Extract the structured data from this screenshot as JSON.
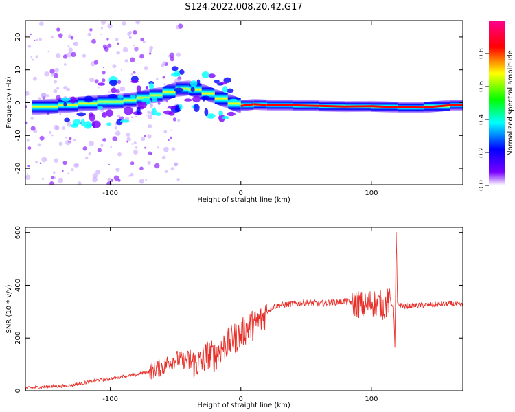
{
  "page": {
    "title": "S124.2022.008.20.42.G17"
  },
  "chart_data": [
    {
      "type": "heatmap",
      "title": "",
      "xlabel": "Height of straight line (km)",
      "ylabel": "Frequency (Hz)",
      "xlim": [
        -165,
        170
      ],
      "ylim": [
        -25,
        25
      ],
      "xticks": [
        -100,
        0,
        100
      ],
      "yticks": [
        -20,
        -10,
        0,
        10,
        20
      ],
      "colorbar": {
        "label": "Normalized spectral amplitude",
        "range": [
          0,
          1
        ],
        "ticks": [
          0.0,
          0.2,
          0.4,
          0.6,
          0.8
        ],
        "colors": [
          "#ffffff",
          "#7a00ff",
          "#0000ff",
          "#00ffff",
          "#00ff00",
          "#ffff00",
          "#ff0000",
          "#ff0090"
        ]
      },
      "ridge": [
        {
          "x": -160,
          "y": -1.5
        },
        {
          "x": -140,
          "y": -1
        },
        {
          "x": -125,
          "y": -0.5
        },
        {
          "x": -110,
          "y": 0
        },
        {
          "x": -90,
          "y": 0.5
        },
        {
          "x": -80,
          "y": 1
        },
        {
          "x": -70,
          "y": 2
        },
        {
          "x": -60,
          "y": 2.5
        },
        {
          "x": -50,
          "y": 4
        },
        {
          "x": -40,
          "y": 4.5
        },
        {
          "x": -30,
          "y": 3.5
        },
        {
          "x": -20,
          "y": 2
        },
        {
          "x": -10,
          "y": 0.5
        },
        {
          "x": 0,
          "y": -1
        },
        {
          "x": 10,
          "y": -0.5
        },
        {
          "x": 20,
          "y": -0.7
        },
        {
          "x": 40,
          "y": -0.8
        },
        {
          "x": 60,
          "y": -1
        },
        {
          "x": 80,
          "y": -1.2
        },
        {
          "x": 100,
          "y": -1.1
        },
        {
          "x": 120,
          "y": -1.4
        },
        {
          "x": 140,
          "y": -1.5
        },
        {
          "x": 160,
          "y": -0.8
        },
        {
          "x": 170,
          "y": -0.7
        }
      ]
    },
    {
      "type": "line",
      "title": "",
      "xlabel": "Height of straight line (km)",
      "ylabel": "SNR (10 * v/v)",
      "xlim": [
        -165,
        170
      ],
      "ylim": [
        0,
        620
      ],
      "xticks": [
        -100,
        0,
        100
      ],
      "yticks": [
        0,
        200,
        400,
        600
      ],
      "color": "#e8302a",
      "series": [
        {
          "x": [
            -165,
            -150,
            -130,
            -110,
            -100,
            -90,
            -80,
            -70,
            -60,
            -55,
            -50,
            -45,
            -40,
            -35,
            -30,
            -25,
            -20,
            -15,
            -10,
            -5,
            0,
            5,
            10,
            15,
            20,
            25,
            30,
            40,
            50,
            60,
            70,
            80,
            85,
            90,
            95,
            100,
            105,
            110,
            113,
            115,
            117,
            118,
            119,
            120,
            125,
            140,
            160,
            170
          ],
          "y": [
            10,
            15,
            20,
            40,
            45,
            55,
            60,
            75,
            90,
            110,
            120,
            115,
            120,
            100,
            110,
            140,
            130,
            160,
            180,
            200,
            210,
            240,
            250,
            265,
            300,
            320,
            325,
            330,
            335,
            330,
            335,
            340,
            335,
            330,
            320,
            335,
            330,
            320,
            340,
            330,
            320,
            160,
            600,
            330,
            320,
            325,
            330,
            325
          ]
        }
      ]
    }
  ]
}
